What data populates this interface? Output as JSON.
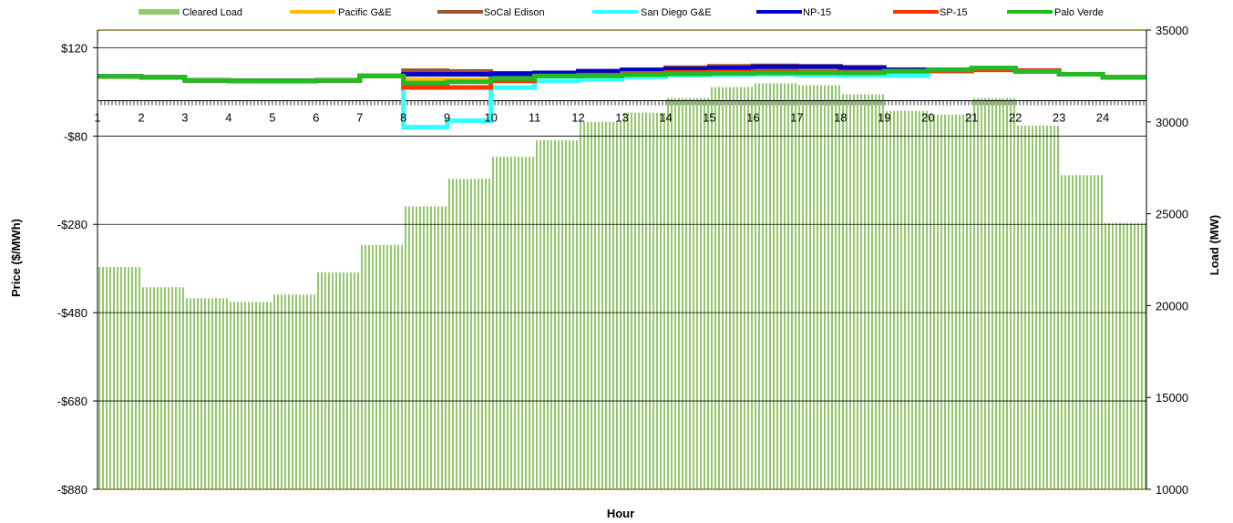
{
  "chart_data": {
    "type": "line",
    "xlabel": "Hour",
    "ylabel": "Price ($/MWh)",
    "y2label": "Load (MW)",
    "x_ticks": [
      "1",
      "2",
      "3",
      "4",
      "5",
      "6",
      "7",
      "8",
      "9",
      "10",
      "11",
      "12",
      "13",
      "14",
      "15",
      "16",
      "17",
      "18",
      "19",
      "20",
      "21",
      "22",
      "23",
      "24"
    ],
    "ylim": [
      -880,
      160
    ],
    "y_ticks": [
      -880,
      -680,
      -480,
      -280,
      -80,
      120
    ],
    "y_tick_labels": [
      "-$880",
      "-$680",
      "-$480",
      "-$280",
      "-$80",
      "$120"
    ],
    "y2lim": [
      10000,
      35000
    ],
    "y2_ticks": [
      10000,
      15000,
      20000,
      25000,
      30000,
      35000
    ],
    "y2_tick_labels": [
      "10000",
      "15000",
      "20000",
      "25000",
      "30000",
      "35000"
    ],
    "grid": "horizontal",
    "legend": "top",
    "cleared_load": {
      "name": "Cleared Load",
      "color": "#92c96b",
      "values": [
        22100,
        21000,
        20400,
        20200,
        20600,
        21800,
        23300,
        25400,
        26900,
        28100,
        29000,
        30000,
        30500,
        31300,
        31900,
        32100,
        32000,
        31500,
        30600,
        30400,
        31300,
        29800,
        27100,
        24500
      ]
    },
    "series": [
      {
        "name": "Pacific G&E",
        "color": "#ffc000",
        "values": [
          55,
          53,
          46,
          45,
          45,
          46,
          56,
          48,
          48,
          53,
          57,
          62,
          66,
          68,
          70,
          70,
          70,
          70,
          70,
          70,
          70,
          68,
          60,
          53
        ]
      },
      {
        "name": "SoCal Edison",
        "color": "#a0522d",
        "values": [
          55,
          53,
          46,
          45,
          45,
          46,
          56,
          68,
          66,
          62,
          62,
          64,
          68,
          75,
          78,
          79,
          78,
          76,
          70,
          70,
          74,
          68,
          60,
          53
        ]
      },
      {
        "name": "San Diego G&E",
        "color": "#33ffff",
        "values": [
          55,
          53,
          46,
          45,
          45,
          46,
          56,
          -60,
          -45,
          30,
          45,
          48,
          54,
          58,
          59,
          60,
          58,
          57,
          57,
          66,
          74,
          68,
          60,
          53
        ]
      },
      {
        "name": "NP-15",
        "color": "#0000cc",
        "values": [
          55,
          53,
          46,
          45,
          45,
          46,
          56,
          60,
          60,
          61,
          63,
          67,
          70,
          72,
          74,
          77,
          77,
          74,
          70,
          70,
          72,
          68,
          60,
          53
        ]
      },
      {
        "name": "SP-15",
        "color": "#ff3300",
        "values": [
          55,
          53,
          46,
          45,
          45,
          46,
          56,
          30,
          30,
          45,
          56,
          58,
          62,
          64,
          65,
          66,
          65,
          65,
          67,
          68,
          70,
          68,
          60,
          53
        ]
      },
      {
        "name": "Palo Verde",
        "color": "#22bb22",
        "values": [
          55,
          53,
          46,
          45,
          45,
          46,
          56,
          40,
          43,
          50,
          56,
          56,
          59,
          61,
          62,
          63,
          63,
          63,
          67,
          70,
          74,
          66,
          60,
          53
        ]
      }
    ]
  }
}
